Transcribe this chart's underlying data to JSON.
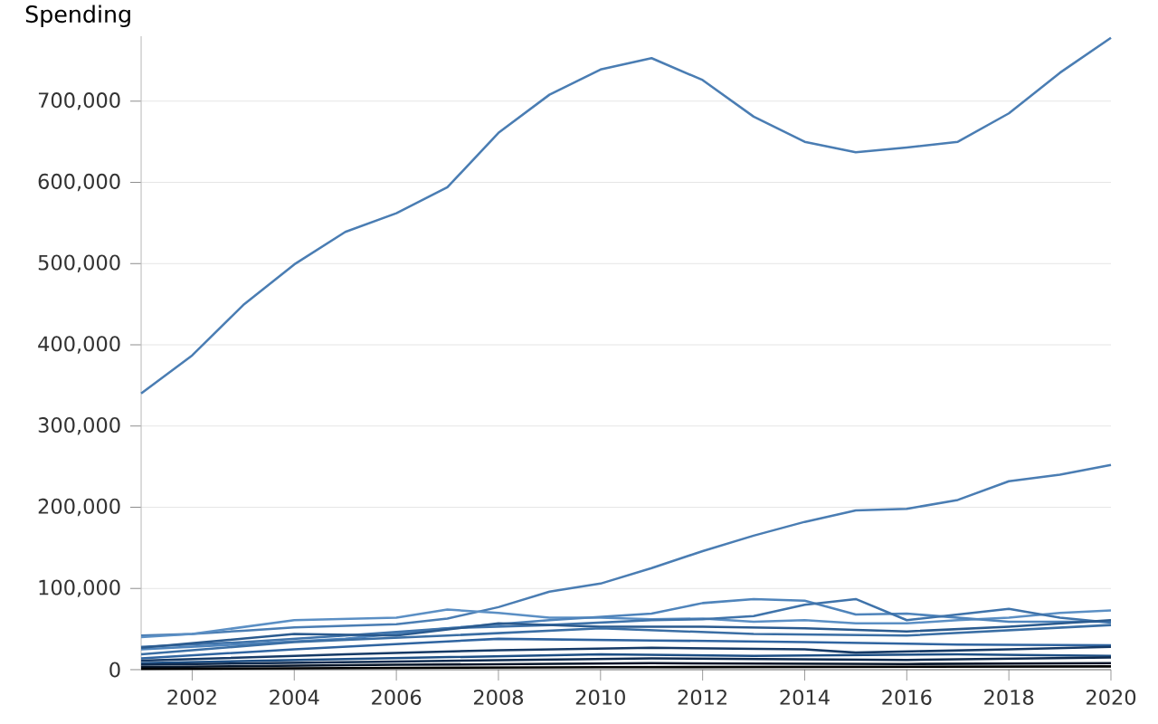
{
  "chart_data": {
    "type": "line",
    "ylabel": "Spending",
    "x": [
      2001,
      2002,
      2003,
      2004,
      2005,
      2006,
      2007,
      2008,
      2009,
      2010,
      2011,
      2012,
      2013,
      2014,
      2015,
      2016,
      2017,
      2018,
      2019,
      2020
    ],
    "xlim": [
      2001,
      2020
    ],
    "xticks": [
      2002,
      2004,
      2006,
      2008,
      2010,
      2012,
      2014,
      2016,
      2018,
      2020
    ],
    "ylim": [
      0,
      780000
    ],
    "yticks": [
      0,
      {
        "value": 100000,
        "label": "100,000"
      },
      {
        "value": 200000,
        "label": "200,000"
      },
      {
        "value": 300000,
        "label": "300,000"
      },
      {
        "value": 400000,
        "label": "400,000"
      },
      {
        "value": 500000,
        "label": "500,000"
      },
      {
        "value": 600000,
        "label": "600,000"
      },
      {
        "value": 700000,
        "label": "700,000"
      }
    ],
    "grid": "y",
    "legend": false,
    "marker": "none",
    "line_style": "solid",
    "series": [
      {
        "color": "#4a7db3",
        "values": [
          340000,
          387000,
          449000,
          499000,
          539000,
          562000,
          594000,
          661000,
          708000,
          739000,
          753000,
          726000,
          681000,
          650000,
          637000,
          643000,
          650000,
          685000,
          735000,
          778000
        ]
      },
      {
        "color": "#4a7db3",
        "values": [
          42000,
          44000,
          48000,
          52000,
          54000,
          56000,
          63000,
          77000,
          96000,
          106000,
          125000,
          146000,
          165000,
          182000,
          196000,
          198000,
          209000,
          232000,
          240000,
          252000
        ]
      },
      {
        "color": "#5b8fc4",
        "x": [
          2001,
          2002,
          2004,
          2006,
          2007,
          2008,
          2009,
          2010,
          2011,
          2012,
          2013,
          2014,
          2015,
          2016,
          2017,
          2018,
          2019,
          2020
        ],
        "values": [
          40000,
          44000,
          61000,
          64000,
          74000,
          70000,
          64000,
          64000,
          62000,
          63000,
          59000,
          61000,
          57000,
          57000,
          61000,
          64000,
          70000,
          73000
        ]
      },
      {
        "color": "#4f84bb",
        "x": [
          2001,
          2005,
          2007,
          2009,
          2011,
          2012,
          2013,
          2014,
          2015,
          2016,
          2017,
          2018,
          2019,
          2020
        ],
        "values": [
          25000,
          38000,
          51000,
          61000,
          69000,
          82000,
          87000,
          85000,
          68000,
          69000,
          64000,
          59000,
          59000,
          59000
        ]
      },
      {
        "color": "#3f73aa",
        "x": [
          2001,
          2003,
          2005,
          2007,
          2009,
          2011,
          2012,
          2013,
          2014,
          2015,
          2016,
          2017,
          2018,
          2019,
          2020
        ],
        "values": [
          28000,
          34000,
          42000,
          51000,
          55000,
          61000,
          62000,
          66000,
          80000,
          87000,
          61000,
          68000,
          75000,
          64000,
          58000
        ]
      },
      {
        "color": "#2a5a8e",
        "x": [
          2001,
          2004,
          2006,
          2008,
          2010,
          2012,
          2014,
          2016,
          2018,
          2020
        ],
        "values": [
          27000,
          44000,
          42000,
          57000,
          53000,
          53000,
          51000,
          47000,
          53000,
          61000
        ]
      },
      {
        "color": "#3a6ea4",
        "x": [
          2001,
          2004,
          2007,
          2010,
          2013,
          2016,
          2020
        ],
        "values": [
          19000,
          34000,
          42000,
          51000,
          44000,
          42000,
          55000
        ]
      },
      {
        "color": "#2f64a0",
        "x": [
          2001,
          2004,
          2008,
          2011,
          2014,
          2017,
          2020
        ],
        "values": [
          14000,
          25000,
          38000,
          36000,
          34000,
          31000,
          30000
        ]
      },
      {
        "color": "#163a66",
        "x": [
          2001,
          2005,
          2008,
          2011,
          2014,
          2015,
          2018,
          2020
        ],
        "values": [
          11000,
          19000,
          24000,
          27000,
          25000,
          21000,
          25000,
          28000
        ]
      },
      {
        "color": "#1d4f85",
        "x": [
          2001,
          2005,
          2010,
          2013,
          2017,
          2020
        ],
        "values": [
          8000,
          13000,
          19000,
          17000,
          19000,
          17000
        ]
      },
      {
        "color": "#0e2a4e",
        "x": [
          2001,
          2006,
          2011,
          2016,
          2020
        ],
        "values": [
          6000,
          10000,
          14000,
          12000,
          15000
        ]
      },
      {
        "color": "#061529",
        "x": [
          2001,
          2006,
          2011,
          2016,
          2020
        ],
        "values": [
          3000,
          6000,
          8000,
          7000,
          8000
        ]
      },
      {
        "color": "#000000",
        "x": [
          2001,
          2010,
          2020
        ],
        "values": [
          1000,
          3000,
          4000
        ]
      }
    ]
  }
}
